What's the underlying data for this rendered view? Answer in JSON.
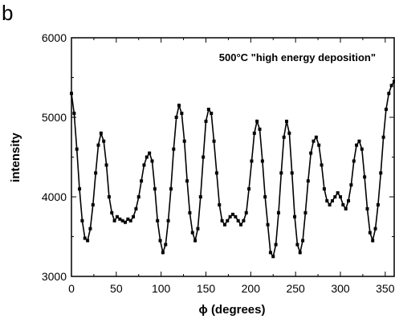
{
  "panel_label": "b",
  "chart_data": {
    "type": "line",
    "title": "",
    "annotation": "500°C \"high energy deposition\"",
    "xlabel": "ϕ (degrees)",
    "ylabel": "intensity",
    "xlim": [
      0,
      360
    ],
    "ylim": [
      3000,
      6000
    ],
    "xticks": [
      0,
      50,
      100,
      150,
      200,
      250,
      300,
      350
    ],
    "yticks": [
      3000,
      4000,
      5000,
      6000
    ],
    "grid": false,
    "marker": "square",
    "color": "#000000",
    "series": [
      {
        "x": [
          0,
          3,
          6,
          9,
          12,
          15,
          18,
          21,
          24,
          27,
          30,
          33,
          36,
          39,
          42,
          45,
          48,
          51,
          54,
          57,
          60,
          63,
          66,
          69,
          72,
          75,
          78,
          81,
          84,
          87,
          90,
          93,
          96,
          99,
          102,
          105,
          108,
          111,
          114,
          117,
          120,
          123,
          126,
          129,
          132,
          135,
          138,
          141,
          144,
          147,
          150,
          153,
          156,
          159,
          162,
          165,
          168,
          171,
          174,
          177,
          180,
          183,
          186,
          189,
          192,
          195,
          198,
          201,
          204,
          207,
          210,
          213,
          216,
          219,
          222,
          225,
          228,
          231,
          234,
          237,
          240,
          243,
          246,
          249,
          252,
          255,
          258,
          261,
          264,
          267,
          270,
          273,
          276,
          279,
          282,
          285,
          288,
          291,
          294,
          297,
          300,
          303,
          306,
          309,
          312,
          315,
          318,
          321,
          324,
          327,
          330,
          333,
          336,
          339,
          342,
          345,
          348,
          351,
          354,
          357,
          360
        ],
        "values": [
          5300,
          5050,
          4600,
          4100,
          3700,
          3480,
          3450,
          3600,
          3900,
          4300,
          4650,
          4800,
          4700,
          4400,
          4000,
          3800,
          3700,
          3750,
          3720,
          3700,
          3680,
          3720,
          3700,
          3750,
          3850,
          4000,
          4200,
          4400,
          4500,
          4550,
          4450,
          4100,
          3700,
          3450,
          3300,
          3400,
          3700,
          4100,
          4600,
          5000,
          5150,
          5050,
          4700,
          4200,
          3800,
          3550,
          3450,
          3600,
          4000,
          4500,
          4950,
          5100,
          5050,
          4700,
          4300,
          3900,
          3700,
          3650,
          3700,
          3750,
          3780,
          3750,
          3700,
          3650,
          3700,
          3800,
          4100,
          4450,
          4800,
          4950,
          4850,
          4450,
          4000,
          3650,
          3300,
          3250,
          3400,
          3800,
          4300,
          4750,
          4950,
          4800,
          4300,
          3750,
          3400,
          3300,
          3450,
          3800,
          4200,
          4550,
          4700,
          4750,
          4650,
          4400,
          4100,
          3950,
          3900,
          3950,
          4000,
          4050,
          4000,
          3900,
          3850,
          3950,
          4150,
          4450,
          4650,
          4700,
          4600,
          4250,
          3850,
          3550,
          3450,
          3600,
          3900,
          4300,
          4750,
          5100,
          5300,
          5400,
          5450
        ]
      }
    ]
  }
}
